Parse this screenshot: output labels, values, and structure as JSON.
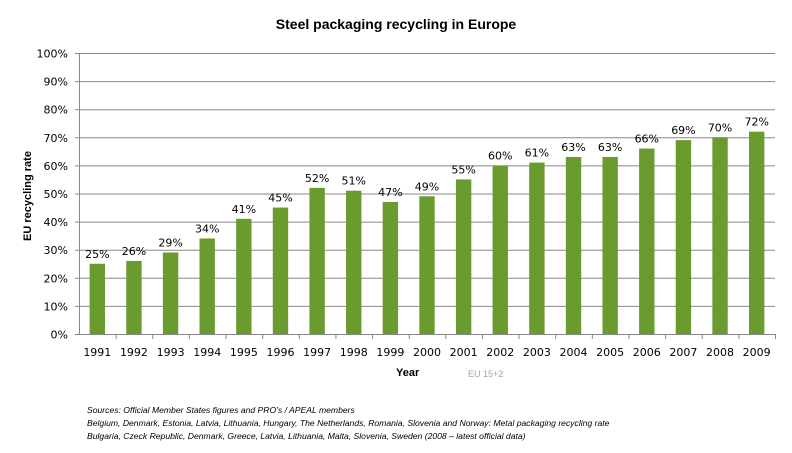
{
  "chart_data": {
    "type": "bar",
    "title": "Steel packaging recycling in Europe",
    "xlabel": "Year",
    "ylabel": "EU recycling rate",
    "note": "EU 15+2",
    "categories": [
      "1991",
      "1992",
      "1993",
      "1994",
      "1995",
      "1996",
      "1997",
      "1998",
      "1999",
      "2000",
      "2001",
      "2002",
      "2003",
      "2004",
      "2005",
      "2006",
      "2007",
      "2008",
      "2009"
    ],
    "values": [
      25,
      26,
      29,
      34,
      41,
      45,
      52,
      51,
      47,
      49,
      55,
      60,
      61,
      63,
      63,
      66,
      69,
      70,
      72
    ],
    "data_labels": [
      "25%",
      "26%",
      "29%",
      "34%",
      "41%",
      "45%",
      "52%",
      "51%",
      "47%",
      "49%",
      "55%",
      "60%",
      "61%",
      "63%",
      "63%",
      "66%",
      "69%",
      "70%",
      "72%"
    ],
    "ylim": [
      0,
      100
    ],
    "yticks": [
      "0%",
      "10%",
      "20%",
      "30%",
      "40%",
      "50%",
      "60%",
      "70%",
      "80%",
      "90%",
      "100%"
    ],
    "grid": true,
    "bar_color": "#6a9b2f"
  },
  "sources": [
    "Sources:  Official Member States figures and PRO’s / APEAL members",
    "Belgium, Denmark, Estonia, Latvia, Lithuania, Hungary, The Netherlands, Romania, Slovenia and Norway: Metal packaging recycling rate",
    "Bulgaria, Czeck Republic, Denmark, Greece, Latvia, Lithuania, Malta, Slovenia, Sweden (2008 – latest official data)"
  ]
}
